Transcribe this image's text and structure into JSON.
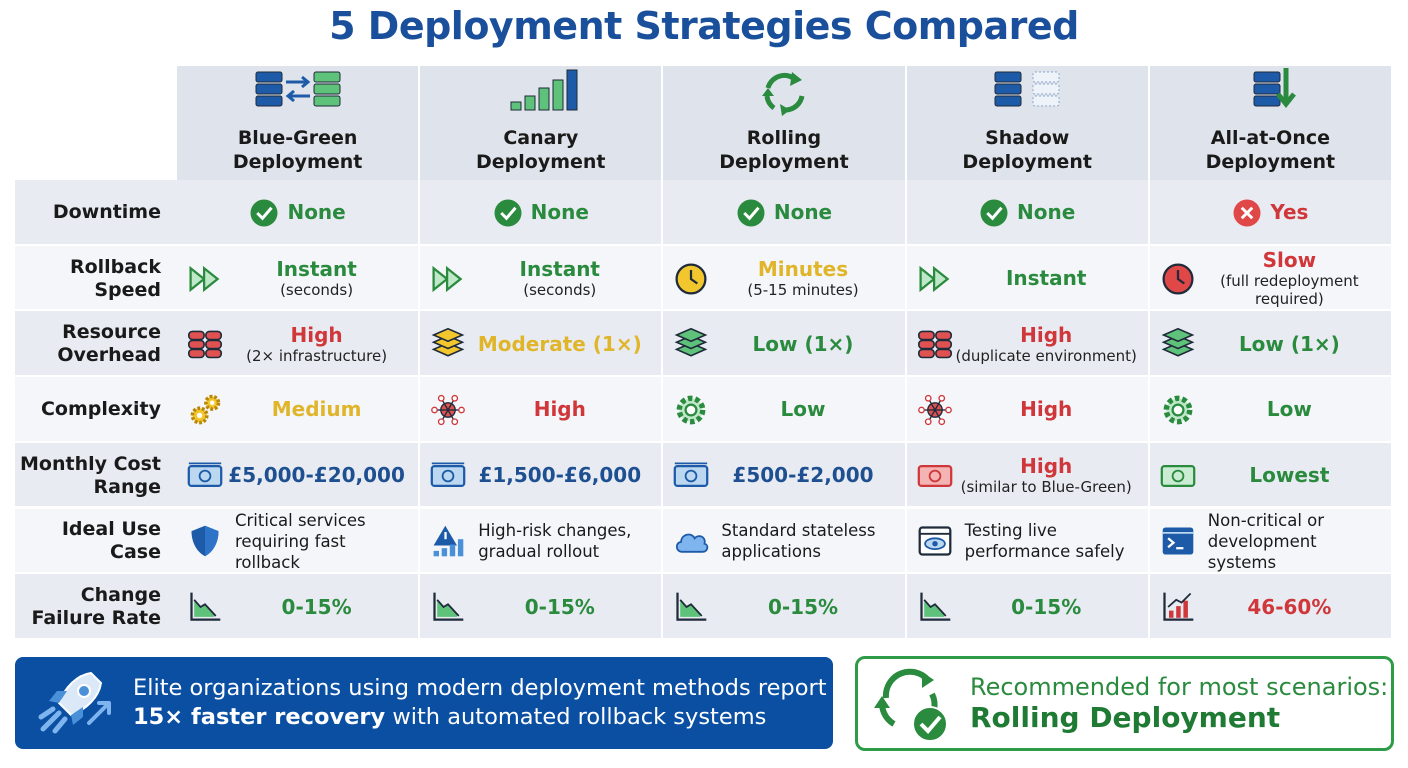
{
  "title": "5 Deployment Strategies Compared",
  "table": {
    "columns": [
      "Blue-Green Deployment",
      "Canary Deployment",
      "Rolling Deployment",
      "Shadow Deployment",
      "All-at-Once Deployment"
    ],
    "rows": [
      {
        "label": "Downtime",
        "cells": [
          {
            "text": "None",
            "color": "#2a8a3e"
          },
          {
            "text": "None",
            "color": "#2a8a3e"
          },
          {
            "text": "None",
            "color": "#2a8a3e"
          },
          {
            "text": "None",
            "color": "#2a8a3e"
          },
          {
            "text": "Yes",
            "color": "#d0373a"
          }
        ]
      },
      {
        "label": "Rollback Speed",
        "cells": [
          {
            "text": "Instant",
            "sub": "(seconds)",
            "color": "#2a8a3e"
          },
          {
            "text": "Instant",
            "sub": "(seconds)",
            "color": "#2a8a3e"
          },
          {
            "text": "Minutes",
            "sub": "(5-15 minutes)",
            "color": "#e0b52a"
          },
          {
            "text": "Instant",
            "color": "#2a8a3e"
          },
          {
            "text": "Slow",
            "sub": "(full redeployment required)",
            "color": "#d0373a"
          }
        ]
      },
      {
        "label": "Resource Overhead",
        "cells": [
          {
            "text": "High",
            "sub": "(2× infrastructure)",
            "color": "#d0373a"
          },
          {
            "text": "Moderate (1×)",
            "color": "#e0b52a"
          },
          {
            "text": "Low (1×)",
            "color": "#2a8a3e"
          },
          {
            "text": "High",
            "sub": "(duplicate environment)",
            "color": "#d0373a"
          },
          {
            "text": "Low (1×)",
            "color": "#2a8a3e"
          }
        ]
      },
      {
        "label": "Complexity",
        "cells": [
          {
            "text": "Medium",
            "color": "#e0b52a"
          },
          {
            "text": "High",
            "color": "#d0373a"
          },
          {
            "text": "Low",
            "color": "#2a8a3e"
          },
          {
            "text": "High",
            "color": "#d0373a"
          },
          {
            "text": "Low",
            "color": "#2a8a3e"
          }
        ]
      },
      {
        "label": "Monthly Cost Range",
        "cells": [
          {
            "text": "£5,000-£20,000",
            "color": "#1d4f91"
          },
          {
            "text": "£1,500-£6,000",
            "color": "#1d4f91"
          },
          {
            "text": "£500-£2,000",
            "color": "#1d4f91"
          },
          {
            "text": "High",
            "sub": "(similar to Blue-Green)",
            "color": "#d0373a"
          },
          {
            "text": "Lowest",
            "color": "#2a8a3e"
          }
        ]
      },
      {
        "label": "Ideal Use Case",
        "cells": [
          {
            "text": "Critical services requiring fast rollback"
          },
          {
            "text": "High-risk changes, gradual rollout"
          },
          {
            "text": "Standard stateless applications"
          },
          {
            "text": "Testing live performance safely"
          },
          {
            "text": "Non-critical or development systems"
          }
        ]
      },
      {
        "label": "Change Failure Rate",
        "cells": [
          {
            "text": "0-15%",
            "color": "#2a8a3e"
          },
          {
            "text": "0-15%",
            "color": "#2a8a3e"
          },
          {
            "text": "0-15%",
            "color": "#2a8a3e"
          },
          {
            "text": "0-15%",
            "color": "#2a8a3e"
          },
          {
            "text": "46-60%",
            "color": "#d0373a"
          }
        ]
      }
    ]
  },
  "banner": {
    "text": "Elite organizations using modern deployment methods report",
    "highlight": "15× faster recovery",
    "rest": "with automated rollback systems"
  },
  "recommendation": {
    "text": "Recommended for most scenarios:",
    "highlight": "Rolling Deployment"
  }
}
